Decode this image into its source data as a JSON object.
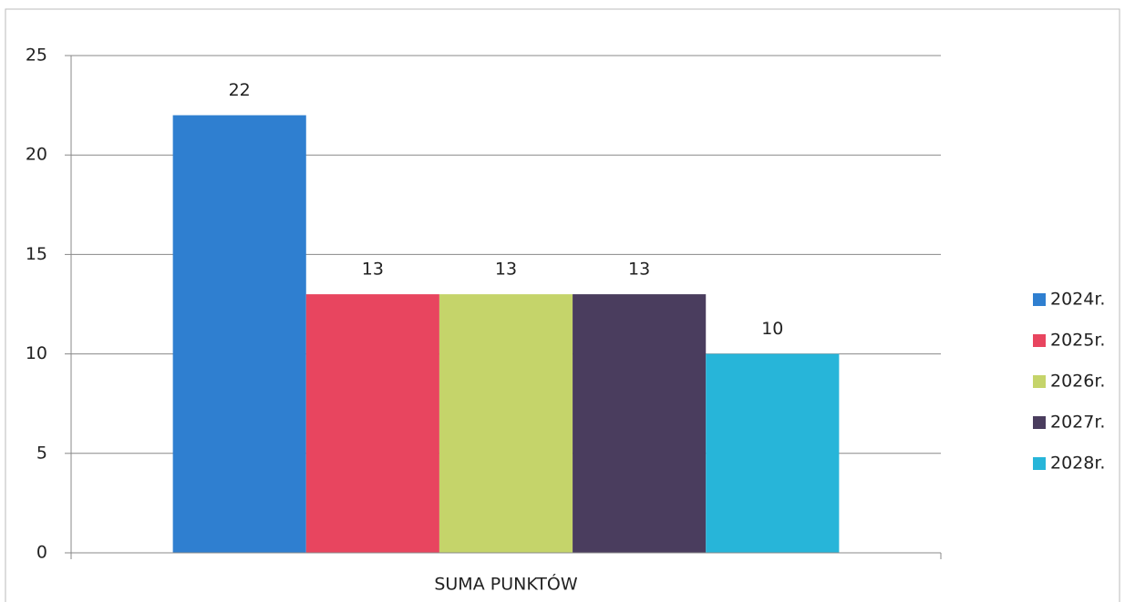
{
  "chart_data": {
    "type": "bar",
    "categories": [
      "SUMA PUNKTÓW"
    ],
    "series": [
      {
        "name": "2024r.",
        "color": "#2f7fd0",
        "values": [
          22
        ]
      },
      {
        "name": "2025r.",
        "color": "#e8455f",
        "values": [
          13
        ]
      },
      {
        "name": "2026r.",
        "color": "#c5d46a",
        "values": [
          13
        ]
      },
      {
        "name": "2027r.",
        "color": "#4a3d5e",
        "values": [
          13
        ]
      },
      {
        "name": "2028r.",
        "color": "#27b5d9",
        "values": [
          10
        ]
      }
    ],
    "ylim": [
      0,
      25
    ],
    "yticks": [
      0,
      5,
      10,
      15,
      20,
      25
    ],
    "grid": true,
    "legend": "right"
  }
}
